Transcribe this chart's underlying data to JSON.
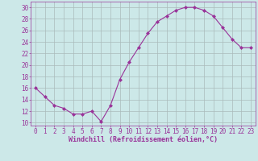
{
  "x": [
    0,
    1,
    2,
    3,
    4,
    5,
    6,
    7,
    8,
    9,
    10,
    11,
    12,
    13,
    14,
    15,
    16,
    17,
    18,
    19,
    20,
    21,
    22,
    23
  ],
  "y": [
    16,
    14.5,
    13,
    12.5,
    11.5,
    11.5,
    12,
    10.2,
    13,
    17.5,
    20.5,
    23,
    25.5,
    27.5,
    28.5,
    29.5,
    30,
    30,
    29.5,
    28.5,
    26.5,
    24.5,
    23,
    23
  ],
  "line_color": "#993399",
  "marker": "D",
  "marker_size": 2.0,
  "bg_color": "#cce8e8",
  "grid_color": "#aabbbb",
  "xlabel": "Windchill (Refroidissement éolien,°C)",
  "xlabel_fontsize": 6,
  "xlabel_color": "#993399",
  "yticks": [
    10,
    12,
    14,
    16,
    18,
    20,
    22,
    24,
    26,
    28,
    30
  ],
  "xlim": [
    -0.5,
    23.5
  ],
  "ylim": [
    9.5,
    31
  ],
  "tick_fontsize": 5.5,
  "tick_color": "#993399",
  "linewidth": 0.8
}
